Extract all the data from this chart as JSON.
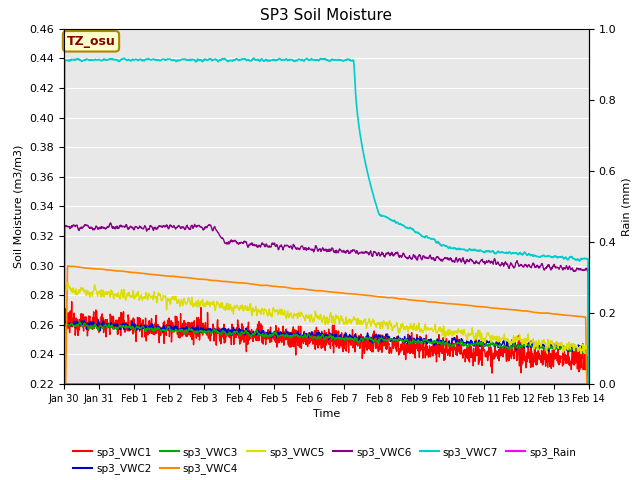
{
  "title": "SP3 Soil Moisture",
  "xlabel": "Time",
  "ylabel_left": "Soil Moisture (m3/m3)",
  "ylabel_right": "Rain (mm)",
  "annotation_text": "TZ_osu",
  "annotation_bg": "#FFFFCC",
  "annotation_border": "#AA8800",
  "xlim_days": [
    0,
    15
  ],
  "ylim_left": [
    0.22,
    0.46
  ],
  "ylim_right": [
    0.0,
    1.0
  ],
  "x_tick_labels": [
    "Jan 30",
    "Jan 31",
    "Feb 1",
    "Feb 2",
    "Feb 3",
    "Feb 4",
    "Feb 5",
    "Feb 6",
    "Feb 7",
    "Feb 8",
    "Feb 9",
    "Feb 10",
    "Feb 11",
    "Feb 12",
    "Feb 13",
    "Feb 14"
  ],
  "fig_bg_color": "#FFFFFF",
  "plot_bg_color": "#E8E8E8",
  "series_colors": {
    "sp3_VWC1": "#FF0000",
    "sp3_VWC2": "#0000CC",
    "sp3_VWC3": "#00AA00",
    "sp3_VWC4": "#FF8800",
    "sp3_VWC5": "#DDDD00",
    "sp3_VWC6": "#880088",
    "sp3_VWC7": "#00CCCC",
    "sp3_Rain": "#FF00FF"
  },
  "legend_row1": [
    "sp3_VWC1",
    "sp3_VWC2",
    "sp3_VWC3",
    "sp3_VWC4",
    "sp3_VWC5",
    "sp3_VWC6"
  ],
  "legend_row2": [
    "sp3_VWC7",
    "sp3_Rain"
  ]
}
